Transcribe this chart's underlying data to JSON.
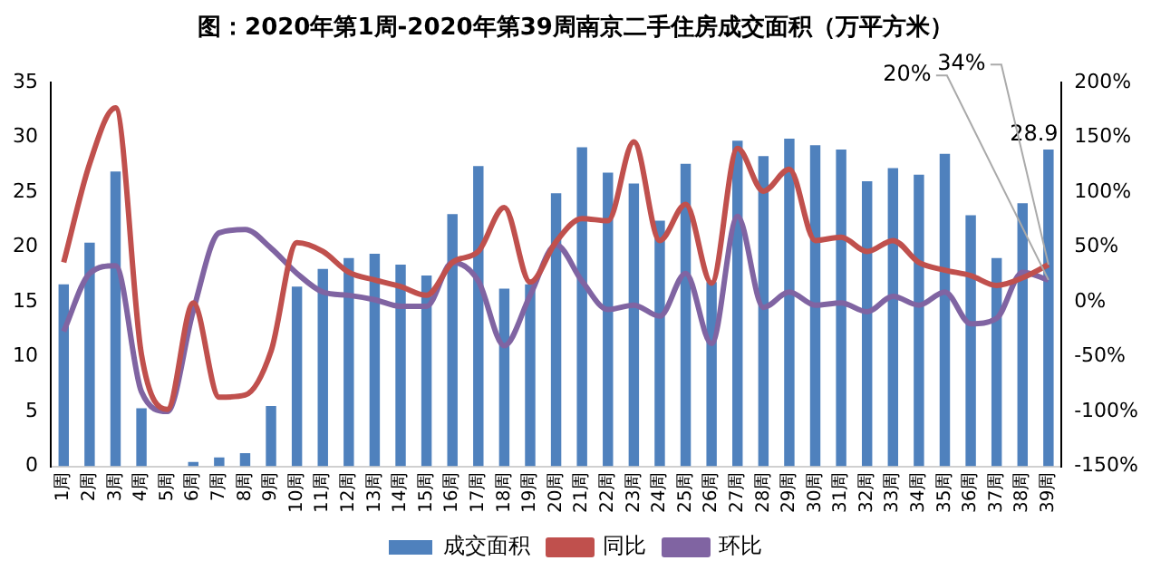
{
  "chart_data": {
    "type": "bar",
    "title": "图：2020年第1周-2020年第39周南京二手住房成交面积（万平方米）",
    "categories": [
      "1周",
      "2周",
      "3周",
      "4周",
      "5周",
      "6周",
      "7周",
      "8周",
      "9周",
      "10周",
      "11周",
      "12周",
      "13周",
      "14周",
      "15周",
      "16周",
      "17周",
      "18周",
      "19周",
      "20周",
      "21周",
      "22周",
      "23周",
      "24周",
      "25周",
      "26周",
      "27周",
      "28周",
      "29周",
      "30周",
      "31周",
      "32周",
      "33周",
      "34周",
      "35周",
      "36周",
      "37周",
      "38周",
      "39周"
    ],
    "series": [
      {
        "name": "成交面积",
        "color": "#4f81bd",
        "values": [
          16.6,
          20.4,
          26.9,
          5.3,
          0,
          0.4,
          0.8,
          1.2,
          5.5,
          16.4,
          18.0,
          19.0,
          19.4,
          18.4,
          17.4,
          23.0,
          27.4,
          16.2,
          16.6,
          24.9,
          29.1,
          26.8,
          25.8,
          22.4,
          27.6,
          16.8,
          29.7,
          28.3,
          29.9,
          29.3,
          28.9,
          26.0,
          27.2,
          26.6,
          28.5,
          22.9,
          19.0,
          24.0,
          28.9
        ],
        "value_labels": [
          null,
          null,
          null,
          null,
          null,
          null,
          null,
          null,
          null,
          null,
          null,
          null,
          null,
          null,
          null,
          null,
          null,
          null,
          null,
          null,
          null,
          null,
          null,
          null,
          null,
          null,
          null,
          null,
          null,
          null,
          null,
          null,
          null,
          null,
          null,
          null,
          null,
          null,
          "28.9"
        ]
      },
      {
        "name": "同比",
        "type": "line",
        "axis": "y2",
        "color": "#c0504d",
        "values": [
          36,
          126,
          177,
          -48,
          -98,
          -1,
          -87,
          -85,
          -45,
          54,
          46,
          27,
          20,
          14,
          6,
          36,
          46,
          86,
          18,
          55,
          76,
          74,
          146,
          56,
          89,
          17,
          140,
          101,
          121,
          56,
          59,
          46,
          56,
          36,
          29,
          24,
          15,
          22,
          34
        ],
        "value_labels": [
          null,
          null,
          null,
          null,
          null,
          null,
          null,
          null,
          null,
          null,
          null,
          null,
          null,
          null,
          null,
          null,
          null,
          null,
          null,
          null,
          null,
          null,
          null,
          null,
          null,
          null,
          null,
          null,
          null,
          null,
          null,
          null,
          null,
          null,
          null,
          null,
          null,
          null,
          "34%"
        ]
      },
      {
        "name": "环比",
        "type": "line",
        "axis": "y2",
        "color": "#8064a2",
        "values": [
          -27,
          26,
          33,
          -82,
          -100,
          -8,
          63,
          66,
          49,
          26,
          9,
          6,
          2,
          -4,
          -4,
          36,
          19,
          -40,
          6,
          52,
          19,
          -7,
          -3,
          -13,
          26,
          -38,
          78,
          -5,
          9,
          -3,
          -1,
          -9,
          5,
          -3,
          9,
          -20,
          -15,
          27,
          20
        ],
        "value_labels": [
          null,
          null,
          null,
          null,
          null,
          null,
          null,
          null,
          null,
          null,
          null,
          null,
          null,
          null,
          null,
          null,
          null,
          null,
          null,
          null,
          null,
          null,
          null,
          null,
          null,
          null,
          null,
          null,
          null,
          null,
          null,
          null,
          null,
          null,
          null,
          null,
          null,
          null,
          "20%"
        ]
      }
    ],
    "ylim": [
      0,
      35
    ],
    "yticks": [
      0,
      5,
      10,
      15,
      20,
      25,
      30,
      35
    ],
    "y2lim": [
      -150,
      200
    ],
    "y2ticks": [
      {
        "value": -150,
        "label": "-150%"
      },
      {
        "value": -100,
        "label": "-100%"
      },
      {
        "value": -50,
        "label": "-50%"
      },
      {
        "value": 0,
        "label": "0%"
      },
      {
        "value": 50,
        "label": "50%"
      },
      {
        "value": 100,
        "label": "100%"
      },
      {
        "value": 150,
        "label": "150%"
      },
      {
        "value": 200,
        "label": "200%"
      }
    ],
    "grid": false,
    "legend": "bottom",
    "marker": "none"
  }
}
